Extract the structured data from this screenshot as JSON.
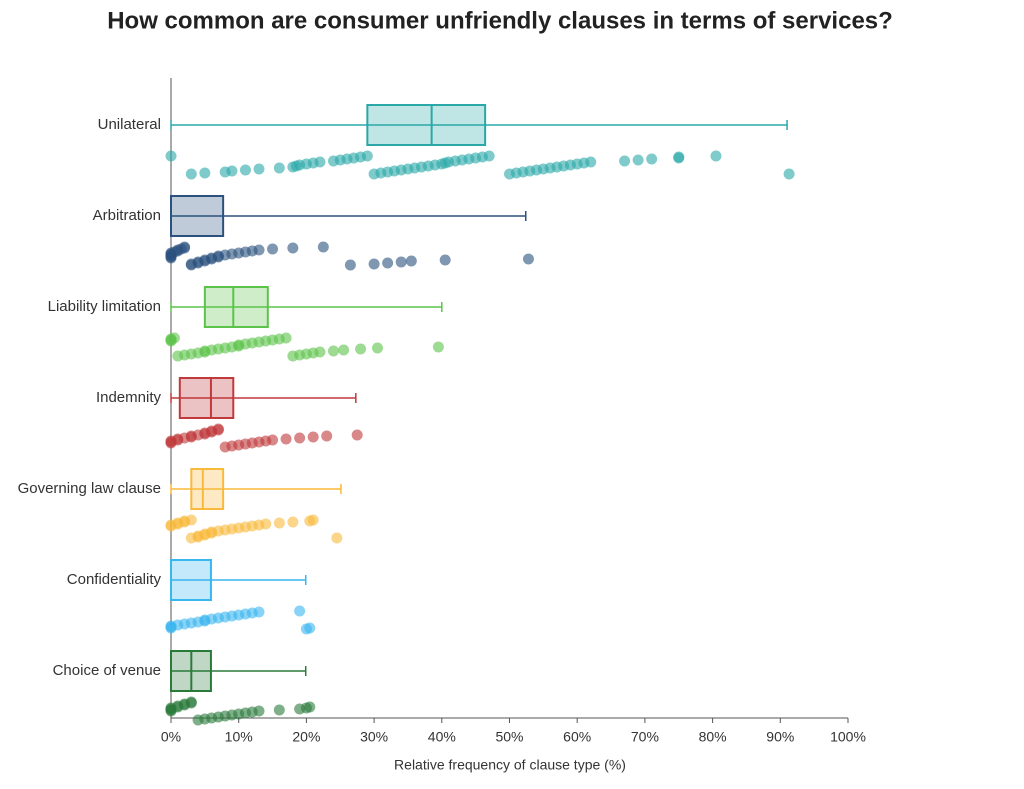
{
  "chart_data": {
    "type": "box",
    "title": "How common are consumer unfriendly clauses in terms of services?",
    "x_label": "Relative frequency of clause type (%)",
    "xlim": [
      0,
      100
    ],
    "xticks": [
      {
        "value": 0,
        "label": "0%"
      },
      {
        "value": 10,
        "label": "10%"
      },
      {
        "value": 20,
        "label": "20%"
      },
      {
        "value": 30,
        "label": "30%"
      },
      {
        "value": 40,
        "label": "40%"
      },
      {
        "value": 50,
        "label": "50%"
      },
      {
        "value": 60,
        "label": "60%"
      },
      {
        "value": 70,
        "label": "70%"
      },
      {
        "value": 80,
        "label": "80%"
      },
      {
        "value": 90,
        "label": "90%"
      },
      {
        "value": 100,
        "label": "100%"
      }
    ],
    "series": [
      {
        "name": "Unilateral",
        "color": "#2aa8a8",
        "min": 0,
        "q1": 29,
        "median": 38.5,
        "q3": 46.4,
        "max": 91,
        "points": [
          0,
          3,
          5,
          8,
          9,
          11,
          13,
          16,
          18,
          18.5,
          19,
          20,
          21,
          22,
          24,
          25,
          26,
          27,
          28,
          29,
          30,
          31,
          32,
          33,
          34,
          35,
          36,
          37,
          38,
          39,
          40,
          40.5,
          41,
          42,
          43,
          44,
          45,
          46,
          47,
          50,
          51,
          52,
          53,
          54,
          55,
          56,
          57,
          58,
          59,
          60,
          61,
          62,
          67,
          69,
          71,
          75,
          75,
          80.5,
          91.3
        ]
      },
      {
        "name": "Arbitration",
        "color": "#2b527f",
        "min": 0,
        "q1": 0,
        "median": 0,
        "q3": 7.7,
        "max": 52.4,
        "points": [
          0,
          0,
          0,
          0,
          0,
          0,
          0.5,
          1,
          1,
          1.5,
          2,
          2,
          3,
          3,
          4,
          4,
          5,
          5,
          6,
          6,
          7,
          7,
          8,
          9,
          10,
          11,
          12,
          13,
          15,
          18,
          22.5,
          26.5,
          30,
          32,
          34,
          35.5,
          40.5,
          52.8
        ]
      },
      {
        "name": "Liability limitation",
        "color": "#5cc34a",
        "min": 0,
        "q1": 5,
        "median": 9.2,
        "q3": 14.3,
        "max": 40,
        "points": [
          0,
          0,
          0,
          0.5,
          1,
          2,
          3,
          4,
          5,
          5,
          6,
          7,
          8,
          9,
          10,
          10,
          11,
          12,
          13,
          14,
          15,
          16,
          17,
          18,
          19,
          20,
          21,
          22,
          24,
          25.5,
          28,
          30.5,
          39.5
        ]
      },
      {
        "name": "Indemnity",
        "color": "#c0393b",
        "min": 0,
        "q1": 1.3,
        "median": 5.9,
        "q3": 9.2,
        "max": 27.3,
        "points": [
          0,
          0,
          0,
          1,
          1,
          2,
          3,
          3,
          4,
          5,
          5,
          6,
          6,
          7,
          7,
          8,
          9,
          10,
          11,
          12,
          13,
          14,
          15,
          17,
          19,
          21,
          23,
          27.5
        ]
      },
      {
        "name": "Governing law clause",
        "color": "#f9b93a",
        "min": 0,
        "q1": 3,
        "median": 4.7,
        "q3": 7.7,
        "max": 25.1,
        "points": [
          0,
          0,
          1,
          1,
          2,
          2,
          3,
          3,
          4,
          4,
          5,
          5,
          6,
          6,
          7,
          8,
          9,
          10,
          11,
          12,
          13,
          14,
          16,
          18,
          20.5,
          21,
          24.5
        ]
      },
      {
        "name": "Confidentiality",
        "color": "#38b6f0",
        "min": 0,
        "q1": 0,
        "median": 0,
        "q3": 5.9,
        "max": 19.9,
        "points": [
          0,
          0,
          0,
          1,
          2,
          3,
          4,
          5,
          5,
          6,
          7,
          8,
          9,
          10,
          11,
          12,
          13,
          19,
          20,
          20.5
        ]
      },
      {
        "name": "Choice of venue",
        "color": "#2a7a3a",
        "min": 0,
        "q1": 0,
        "median": 3,
        "q3": 5.9,
        "max": 19.9,
        "points": [
          0,
          0,
          0,
          0,
          1,
          1,
          2,
          2,
          3,
          3,
          4,
          5,
          6,
          7,
          8,
          9,
          10,
          11,
          12,
          13,
          16,
          19,
          20,
          20.5
        ]
      }
    ]
  }
}
